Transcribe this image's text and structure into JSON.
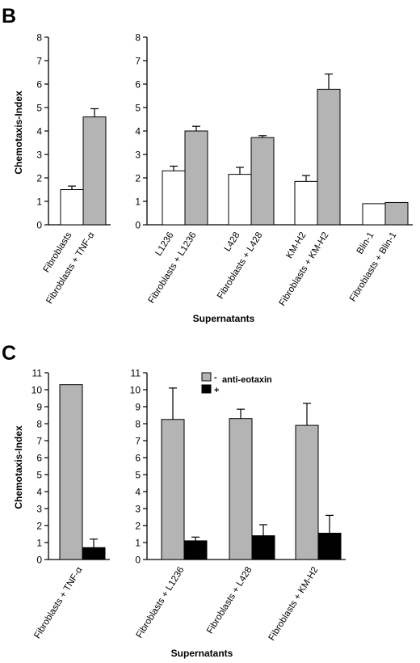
{
  "figure": {
    "panels": [
      "B",
      "C"
    ],
    "colors": {
      "white_bar": "#ffffff",
      "gray_bar": "#b4b4b4",
      "black_bar": "#000000",
      "stroke": "#000000"
    }
  },
  "chart_data": [
    {
      "panel": "B",
      "type": "bar",
      "ylabel": "Chemotaxis-Index",
      "xlabel": "Supernatants",
      "ylim": [
        0,
        8
      ],
      "yticks": [
        0,
        1,
        2,
        3,
        4,
        5,
        6,
        7,
        8
      ],
      "grid": false,
      "legend": "none",
      "groups": [
        {
          "categories": [
            "Fibroblasts",
            "Fibroblasts + TNF-α"
          ],
          "bars": [
            {
              "value": 1.5,
              "error": 0.15,
              "color": "white"
            },
            {
              "value": 4.6,
              "error": 0.35,
              "color": "gray"
            }
          ]
        },
        {
          "categories": [
            "L1236",
            "Fibroblasts + L1236",
            "L428",
            "Fibroblasts + L428",
            "KM-H2",
            "Fibroblasts + KM-H2",
            "Blin-1",
            "Fibroblasts + Blin-1"
          ],
          "bars": [
            {
              "value": 2.3,
              "error": 0.2,
              "color": "white"
            },
            {
              "value": 4.0,
              "error": 0.2,
              "color": "gray"
            },
            {
              "value": 2.15,
              "error": 0.3,
              "color": "white"
            },
            {
              "value": 3.72,
              "error": 0.08,
              "color": "gray"
            },
            {
              "value": 1.85,
              "error": 0.25,
              "color": "white"
            },
            {
              "value": 5.78,
              "error": 0.65,
              "color": "gray"
            },
            {
              "value": 0.9,
              "error": 0.0,
              "color": "white"
            },
            {
              "value": 0.95,
              "error": 0.0,
              "color": "gray"
            }
          ]
        }
      ]
    },
    {
      "panel": "C",
      "type": "bar",
      "ylabel": "Chemotaxis-Index",
      "xlabel": "Supernatants",
      "ylim": [
        0,
        11
      ],
      "yticks": [
        0,
        1,
        2,
        3,
        4,
        5,
        6,
        7,
        8,
        9,
        10,
        11
      ],
      "grid": false,
      "legend": {
        "position": "top",
        "title": "anti-eotaxin",
        "entries": [
          {
            "label": "-",
            "color": "gray"
          },
          {
            "label": "+",
            "color": "black"
          }
        ]
      },
      "groups": [
        {
          "categories": [
            "Fibroblasts + TNF-α"
          ],
          "bars": [
            {
              "value": 10.3,
              "error": 0.0,
              "color": "gray"
            },
            {
              "value": 0.7,
              "error": 0.5,
              "color": "black"
            }
          ]
        },
        {
          "categories": [
            "Fibroblasts + L1236",
            "Fibroblasts + L428",
            "Fibroblasts + KM-H2"
          ],
          "bars": [
            {
              "value": 8.25,
              "error": 1.85,
              "color": "gray"
            },
            {
              "value": 1.1,
              "error": 0.22,
              "color": "black"
            },
            {
              "value": 8.3,
              "error": 0.55,
              "color": "gray"
            },
            {
              "value": 1.4,
              "error": 0.65,
              "color": "black"
            },
            {
              "value": 7.9,
              "error": 1.3,
              "color": "gray"
            },
            {
              "value": 1.55,
              "error": 1.05,
              "color": "black"
            }
          ]
        }
      ]
    }
  ]
}
